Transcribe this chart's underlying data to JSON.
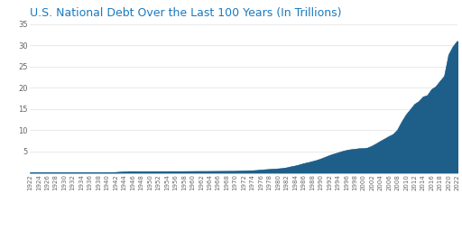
{
  "title": "U.S. National Debt Over the Last 100 Years (In Trillions)",
  "title_color": "#1a7abf",
  "fill_color": "#1e5f8a",
  "background_color": "#ffffff",
  "ylim": [
    0,
    35
  ],
  "yticks": [
    5,
    10,
    15,
    20,
    25,
    30,
    35
  ],
  "years": [
    1922,
    1923,
    1924,
    1925,
    1926,
    1927,
    1928,
    1929,
    1930,
    1931,
    1932,
    1933,
    1934,
    1935,
    1936,
    1937,
    1938,
    1939,
    1940,
    1941,
    1942,
    1943,
    1944,
    1945,
    1946,
    1947,
    1948,
    1949,
    1950,
    1951,
    1952,
    1953,
    1954,
    1955,
    1956,
    1957,
    1958,
    1959,
    1960,
    1961,
    1962,
    1963,
    1964,
    1965,
    1966,
    1967,
    1968,
    1969,
    1970,
    1971,
    1972,
    1973,
    1974,
    1975,
    1976,
    1977,
    1978,
    1979,
    1980,
    1981,
    1982,
    1983,
    1984,
    1985,
    1986,
    1987,
    1988,
    1989,
    1990,
    1991,
    1992,
    1993,
    1994,
    1995,
    1996,
    1997,
    1998,
    1999,
    2000,
    2001,
    2002,
    2003,
    2004,
    2005,
    2006,
    2007,
    2008,
    2009,
    2010,
    2011,
    2012,
    2013,
    2014,
    2015,
    2016,
    2017,
    2018,
    2019,
    2020,
    2021,
    2022
  ],
  "debt": [
    0.023,
    0.022,
    0.021,
    0.021,
    0.02,
    0.018,
    0.018,
    0.017,
    0.016,
    0.017,
    0.02,
    0.023,
    0.027,
    0.029,
    0.034,
    0.037,
    0.037,
    0.04,
    0.043,
    0.049,
    0.072,
    0.137,
    0.202,
    0.259,
    0.271,
    0.258,
    0.252,
    0.253,
    0.257,
    0.255,
    0.259,
    0.266,
    0.271,
    0.274,
    0.273,
    0.272,
    0.279,
    0.288,
    0.291,
    0.303,
    0.303,
    0.303,
    0.31,
    0.317,
    0.323,
    0.33,
    0.341,
    0.348,
    0.354,
    0.383,
    0.409,
    0.458,
    0.476,
    0.534,
    0.621,
    0.707,
    0.779,
    0.829,
    0.909,
    0.998,
    1.142,
    1.377,
    1.572,
    1.823,
    2.125,
    2.35,
    2.601,
    2.868,
    3.206,
    3.599,
    4.002,
    4.351,
    4.643,
    4.974,
    5.225,
    5.413,
    5.526,
    5.657,
    5.674,
    5.807,
    6.228,
    6.783,
    7.379,
    7.933,
    8.507,
    9.008,
    10.025,
    11.91,
    13.562,
    14.79,
    16.066,
    16.738,
    17.824,
    18.151,
    19.573,
    20.245,
    21.516,
    22.719,
    27.748,
    29.617,
    30.929
  ],
  "title_fontsize": 9,
  "tick_fontsize": 5,
  "ytick_fontsize": 6
}
